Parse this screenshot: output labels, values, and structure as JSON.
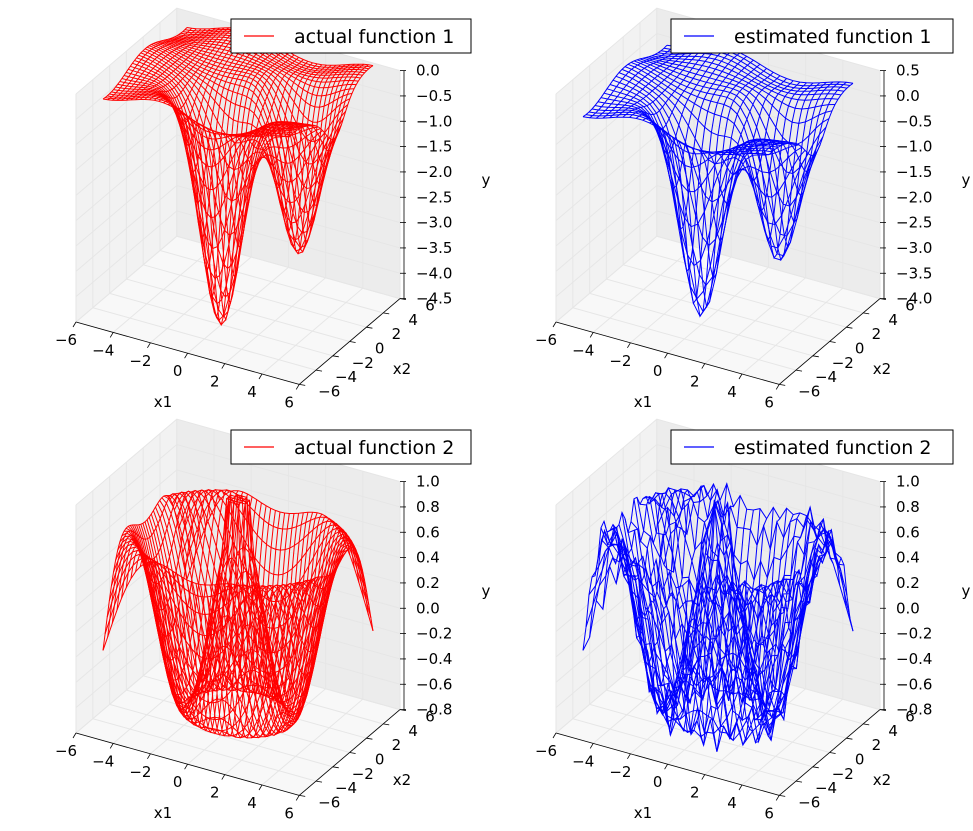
{
  "chart_data": [
    {
      "type": "wireframe-3d",
      "legend": "actual function 1",
      "color": "#ff0000",
      "legend_position": "top-right",
      "xlabel": "x1",
      "ylabel": "x2",
      "zlabel": "y",
      "xlim": [
        -6,
        6
      ],
      "ylim": [
        -6,
        6
      ],
      "zlim": [
        -4.5,
        0.0
      ],
      "x_ticks": [
        "−6",
        "−4",
        "−2",
        "0",
        "2",
        "4",
        "6"
      ],
      "y_ticks": [
        "−6",
        "−4",
        "−2",
        "0",
        "2",
        "4",
        "6"
      ],
      "z_ticks": [
        "0.0",
        "−0.5",
        "−1.0",
        "−1.5",
        "−2.0",
        "−2.5",
        "−3.0",
        "−3.5",
        "−4.0",
        "−4.5"
      ],
      "surface": {
        "kind": "two_wells",
        "baseline": 0.0,
        "wells": [
          {
            "x": 0,
            "y": -2,
            "depth": -4.5
          },
          {
            "x": 3,
            "y": 0.5,
            "depth": -3.2
          }
        ],
        "grid_min": -5,
        "grid_max": 5,
        "grid_size": 41
      }
    },
    {
      "type": "wireframe-3d",
      "legend": "estimated function 1",
      "color": "#0000ff",
      "legend_position": "top-right",
      "xlabel": "x1",
      "ylabel": "x2",
      "zlabel": "y",
      "xlim": [
        -6,
        6
      ],
      "ylim": [
        -6,
        6
      ],
      "zlim": [
        -4.0,
        0.5
      ],
      "x_ticks": [
        "−6",
        "−4",
        "−2",
        "0",
        "2",
        "4",
        "6"
      ],
      "y_ticks": [
        "−6",
        "−4",
        "−2",
        "0",
        "2",
        "4",
        "6"
      ],
      "z_ticks": [
        "0.5",
        "0.0",
        "−0.5",
        "−1.0",
        "−1.5",
        "−2.0",
        "−2.5",
        "−3.0",
        "−3.5",
        "−4.0"
      ],
      "surface": {
        "kind": "two_wells",
        "baseline": 0.15,
        "wells": [
          {
            "x": 0,
            "y": -2,
            "depth": -4.0
          },
          {
            "x": 3,
            "y": 0.5,
            "depth": -3.0
          }
        ],
        "grid_min": -5,
        "grid_max": 5,
        "grid_size": 29
      }
    },
    {
      "type": "wireframe-3d",
      "legend": "actual function 2",
      "color": "#ff0000",
      "legend_position": "top-right",
      "xlabel": "x1",
      "ylabel": "x2",
      "zlabel": "y",
      "xlim": [
        -6,
        6
      ],
      "ylim": [
        -6,
        6
      ],
      "zlim": [
        -0.8,
        1.0
      ],
      "x_ticks": [
        "−6",
        "−4",
        "−2",
        "0",
        "2",
        "4",
        "6"
      ],
      "y_ticks": [
        "−6",
        "−4",
        "−2",
        "0",
        "2",
        "4",
        "6"
      ],
      "z_ticks": [
        "1.0",
        "0.8",
        "0.6",
        "0.4",
        "0.2",
        "0.0",
        "−0.2",
        "−0.4",
        "−0.6",
        "−0.8"
      ],
      "surface": {
        "kind": "sinc_ring",
        "peak": 1.0,
        "grid_min": -5,
        "grid_max": 5,
        "grid_size": 41
      }
    },
    {
      "type": "wireframe-3d",
      "legend": "estimated function 2",
      "color": "#0000ff",
      "legend_position": "top-right",
      "xlabel": "x1",
      "ylabel": "x2",
      "zlabel": "y",
      "xlim": [
        -6,
        6
      ],
      "ylim": [
        -6,
        6
      ],
      "zlim": [
        -0.8,
        1.0
      ],
      "x_ticks": [
        "−6",
        "−4",
        "−2",
        "0",
        "2",
        "4",
        "6"
      ],
      "y_ticks": [
        "−6",
        "−4",
        "−2",
        "0",
        "2",
        "4",
        "6"
      ],
      "z_ticks": [
        "1.0",
        "0.8",
        "0.6",
        "0.4",
        "0.2",
        "0.0",
        "−0.2",
        "−0.4",
        "−0.6",
        "−0.8"
      ],
      "surface": {
        "kind": "sinc_ring",
        "peak": 0.9,
        "noise": 0.12,
        "grid_min": -5,
        "grid_max": 5,
        "grid_size": 29
      }
    }
  ]
}
